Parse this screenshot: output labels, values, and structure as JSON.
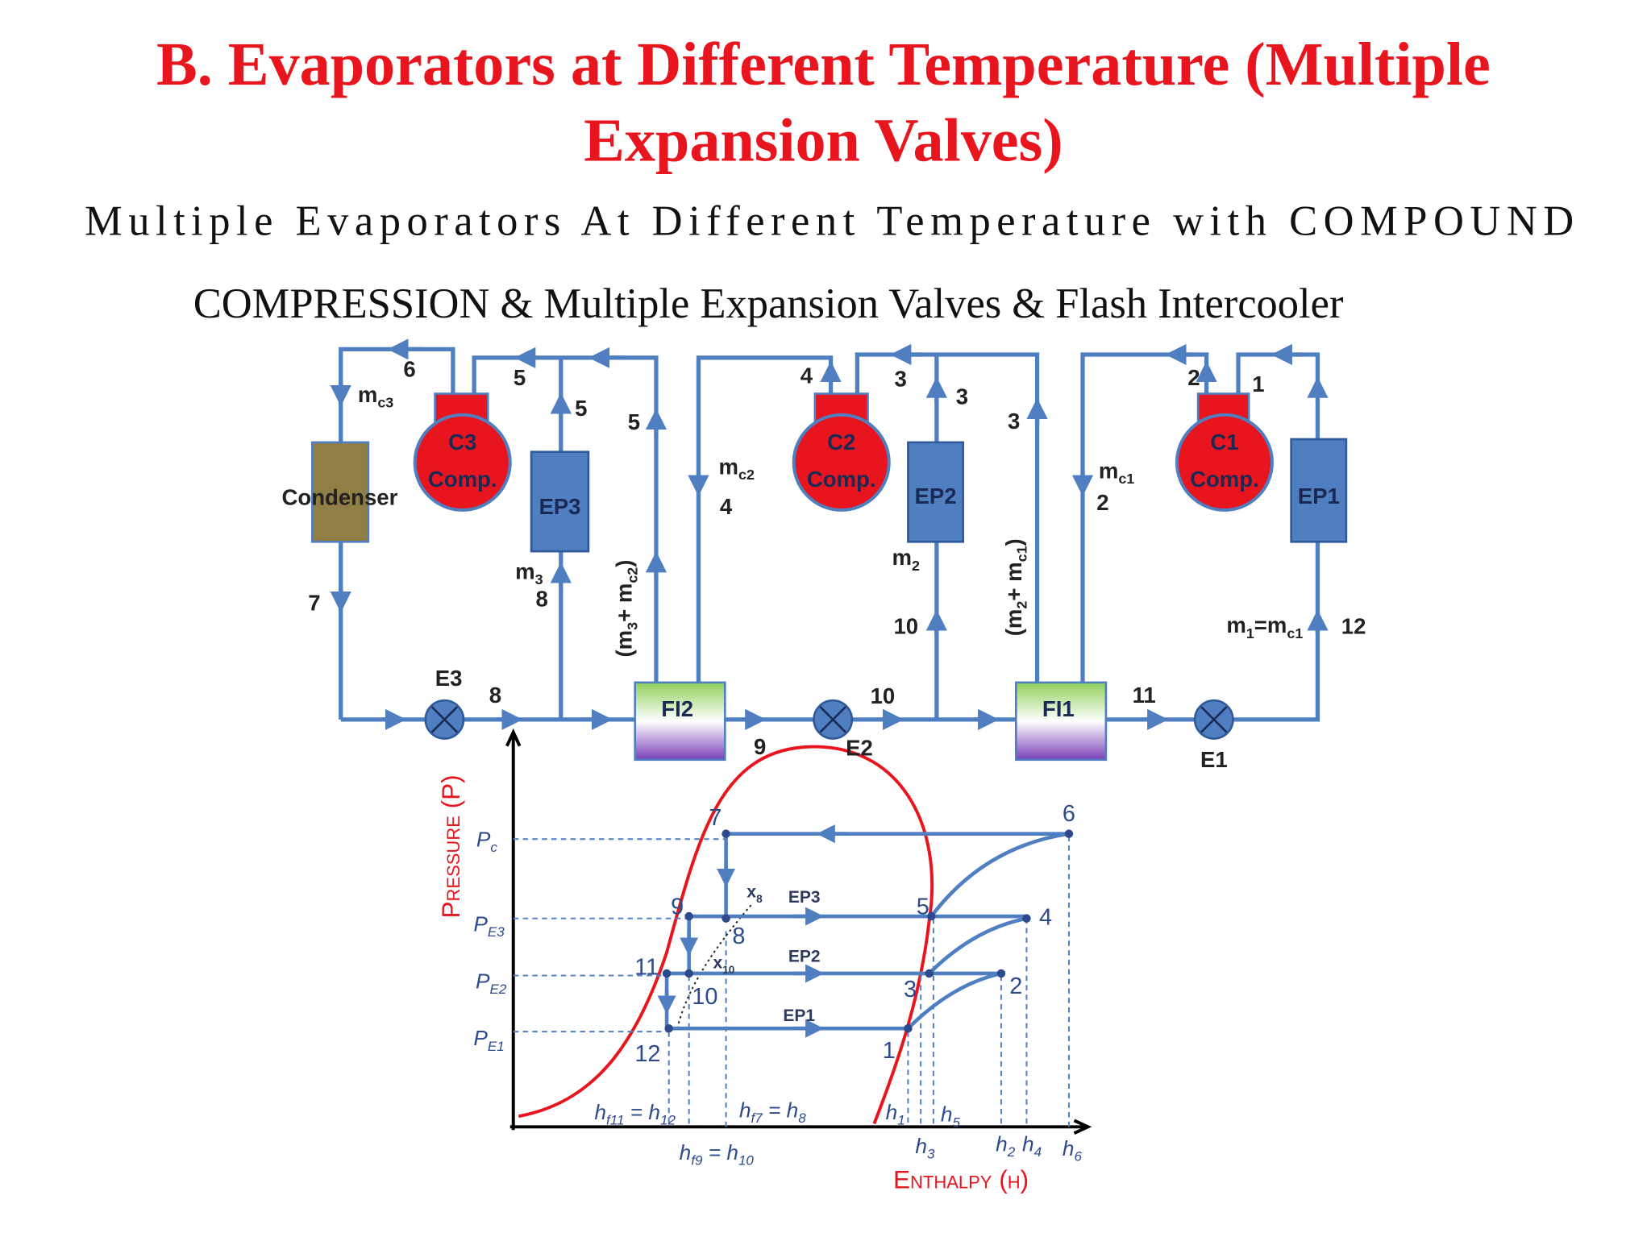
{
  "title_lines": [
    "B. Evaporators at Different Temperature (Multiple",
    "Expansion Valves)"
  ],
  "subtitle_lines": [
    "Multiple Evaporators At Different Temperature with COMPOUND",
    "COMPRESSION & Multiple Expansion Valves & Flash Intercooler"
  ],
  "schematic": {
    "components": {
      "condenser": "Condenser",
      "c3": "C3",
      "c3_comp": "Comp.",
      "ep3": "EP3",
      "fi2": "FI2",
      "c2": "C2",
      "c2_comp": "Comp.",
      "ep2": "EP2",
      "fi1": "FI1",
      "c1": "C1",
      "c1_comp": "Comp.",
      "ep1": "EP1",
      "e3": "E3",
      "e2": "E2",
      "e1": "E1"
    },
    "state_labels": [
      "6",
      "5",
      "5",
      "5",
      "7",
      "8",
      "8",
      "9",
      "10",
      "4",
      "3",
      "3",
      "3",
      "4",
      "10",
      "2",
      "1",
      "2",
      "11",
      "12"
    ],
    "flow_labels": [
      [
        "m",
        "c3"
      ],
      [
        "m",
        "3"
      ],
      [
        "(m",
        "3",
        "+ m",
        "c2",
        ")"
      ],
      [
        "m",
        "c2"
      ],
      [
        "m",
        "2"
      ],
      [
        "(m",
        "2",
        "+ m",
        "c1",
        ")"
      ],
      [
        "m",
        "c1"
      ],
      [
        "m",
        "1",
        "=m",
        "c1"
      ]
    ]
  },
  "ph_diagram": {
    "y_axis_title": "Pressure (P)",
    "x_axis_title": "Enthalpy (h)",
    "pressure_levels": [
      [
        "P",
        "c"
      ],
      [
        "P",
        "E3"
      ],
      [
        "P",
        "E2"
      ],
      [
        "P",
        "E1"
      ]
    ],
    "enthalpy_labels": [
      [
        "h",
        "f11",
        " = h",
        "12"
      ],
      [
        "h",
        "f7",
        " = h",
        "8"
      ],
      [
        "h",
        "f9",
        " = h",
        "10"
      ],
      [
        "h",
        "1"
      ],
      [
        "h",
        "5"
      ],
      [
        "h",
        "3"
      ],
      [
        "h",
        "2"
      ],
      [
        "h",
        "4"
      ],
      [
        "h",
        "6"
      ]
    ],
    "points": [
      "7",
      "6",
      "9",
      "5",
      "4",
      "8",
      "11",
      "3",
      "2",
      "10",
      "12",
      "1"
    ],
    "qualities": [
      [
        "x",
        "8"
      ],
      [
        "x",
        "10"
      ]
    ],
    "evaporator_labels": [
      "EP3",
      "EP2",
      "EP1"
    ]
  }
}
